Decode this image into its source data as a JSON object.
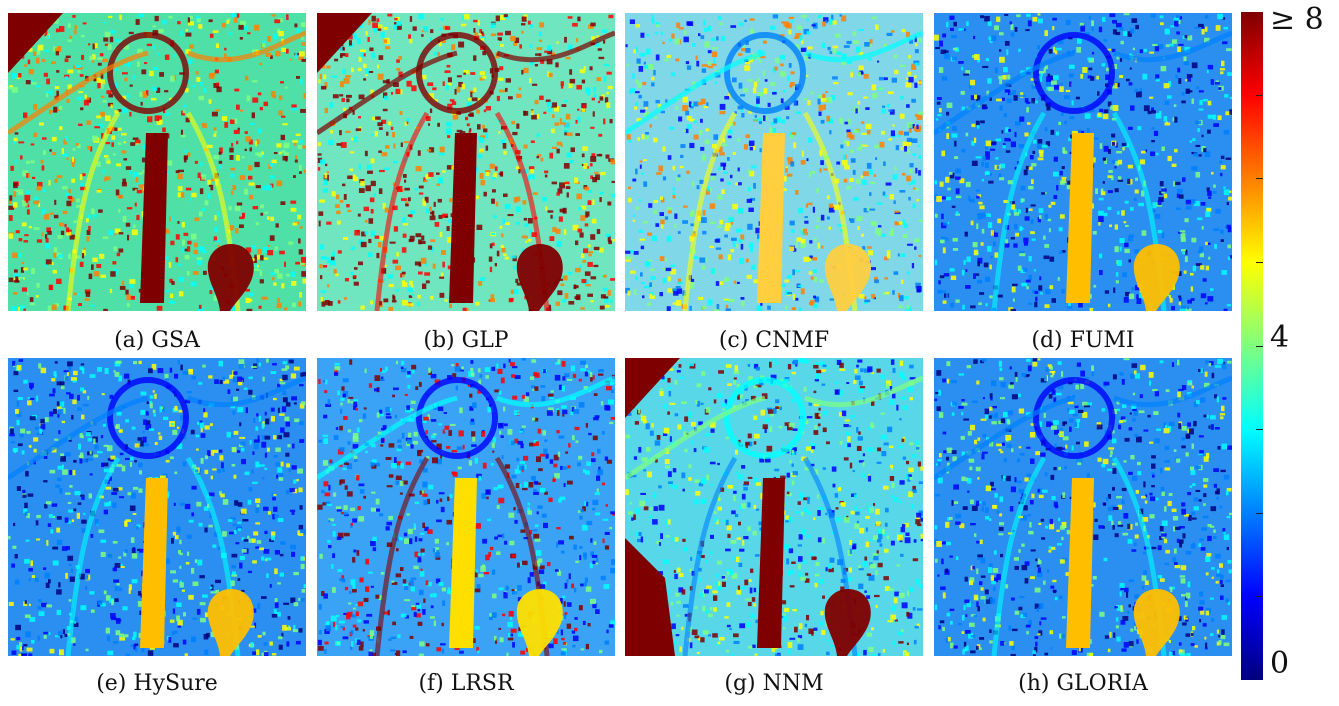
{
  "figure": {
    "panels": [
      {
        "caption": "(a) GSA",
        "tone": "warm"
      },
      {
        "caption": "(b) GLP",
        "tone": "veryWarm"
      },
      {
        "caption": "(c) CNMF",
        "tone": "mixed"
      },
      {
        "caption": "(d) FUMI",
        "tone": "cool"
      },
      {
        "caption": "(e) HySure",
        "tone": "cool"
      },
      {
        "caption": "(f) LRSR",
        "tone": "coolSpots"
      },
      {
        "caption": "(g) NNM",
        "tone": "cyanWarm"
      },
      {
        "caption": "(h) GLORIA",
        "tone": "cool"
      }
    ],
    "colorbar": {
      "colormap": "jet",
      "min": 0,
      "max": 8,
      "tick_labels": {
        "max": "≥ 8",
        "mid": "4",
        "min": "0"
      },
      "colors": [
        "#00007f",
        "#0000ff",
        "#007fff",
        "#00ffff",
        "#7fff7f",
        "#ffff00",
        "#ff7f00",
        "#ff0000",
        "#7f0000"
      ]
    }
  }
}
